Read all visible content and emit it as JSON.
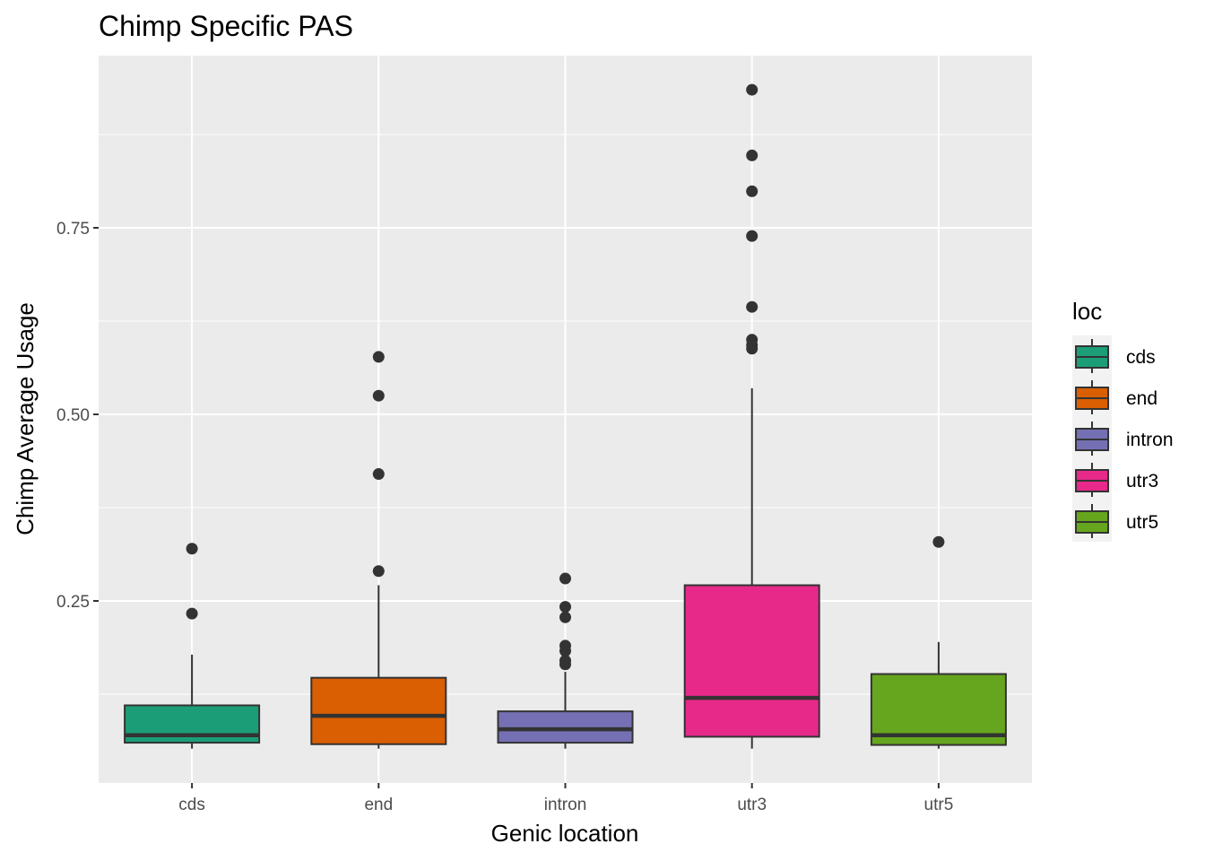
{
  "chart_data": {
    "type": "boxplot",
    "title": "Chimp Specific PAS",
    "xlabel": "Genic location",
    "ylabel": "Chimp Average Usage",
    "categories": [
      "cds",
      "end",
      "intron",
      "utr3",
      "utr5"
    ],
    "ylim": [
      0,
      0.98
    ],
    "yticks": [
      0.25,
      0.5,
      0.75
    ],
    "ytick_labels": [
      "0.25",
      "0.50",
      "0.75"
    ],
    "grid": true,
    "legend": {
      "title": "loc",
      "position": "right"
    },
    "colors": {
      "cds": "#1b9e77",
      "end": "#d95f02",
      "intron": "#7570b3",
      "utr3": "#e7298a",
      "utr5": "#66a61e"
    },
    "boxes": [
      {
        "category": "cds",
        "whisker_low": 0.052,
        "q1": 0.06,
        "median": 0.07,
        "q3": 0.11,
        "whisker_high": 0.178,
        "outliers": [
          0.233,
          0.32
        ]
      },
      {
        "category": "end",
        "whisker_low": 0.052,
        "q1": 0.058,
        "median": 0.096,
        "q3": 0.147,
        "whisker_high": 0.271,
        "outliers": [
          0.29,
          0.42,
          0.525,
          0.577
        ]
      },
      {
        "category": "intron",
        "whisker_low": 0.052,
        "q1": 0.06,
        "median": 0.078,
        "q3": 0.102,
        "whisker_high": 0.155,
        "outliers": [
          0.165,
          0.17,
          0.183,
          0.19,
          0.228,
          0.242,
          0.28
        ]
      },
      {
        "category": "utr3",
        "whisker_low": 0.052,
        "q1": 0.068,
        "median": 0.12,
        "q3": 0.271,
        "whisker_high": 0.535,
        "outliers": [
          0.588,
          0.593,
          0.6,
          0.644,
          0.739,
          0.799,
          0.847,
          0.935
        ]
      },
      {
        "category": "utr5",
        "whisker_low": 0.052,
        "q1": 0.057,
        "median": 0.07,
        "q3": 0.152,
        "whisker_high": 0.195,
        "outliers": [
          0.329
        ]
      }
    ]
  }
}
